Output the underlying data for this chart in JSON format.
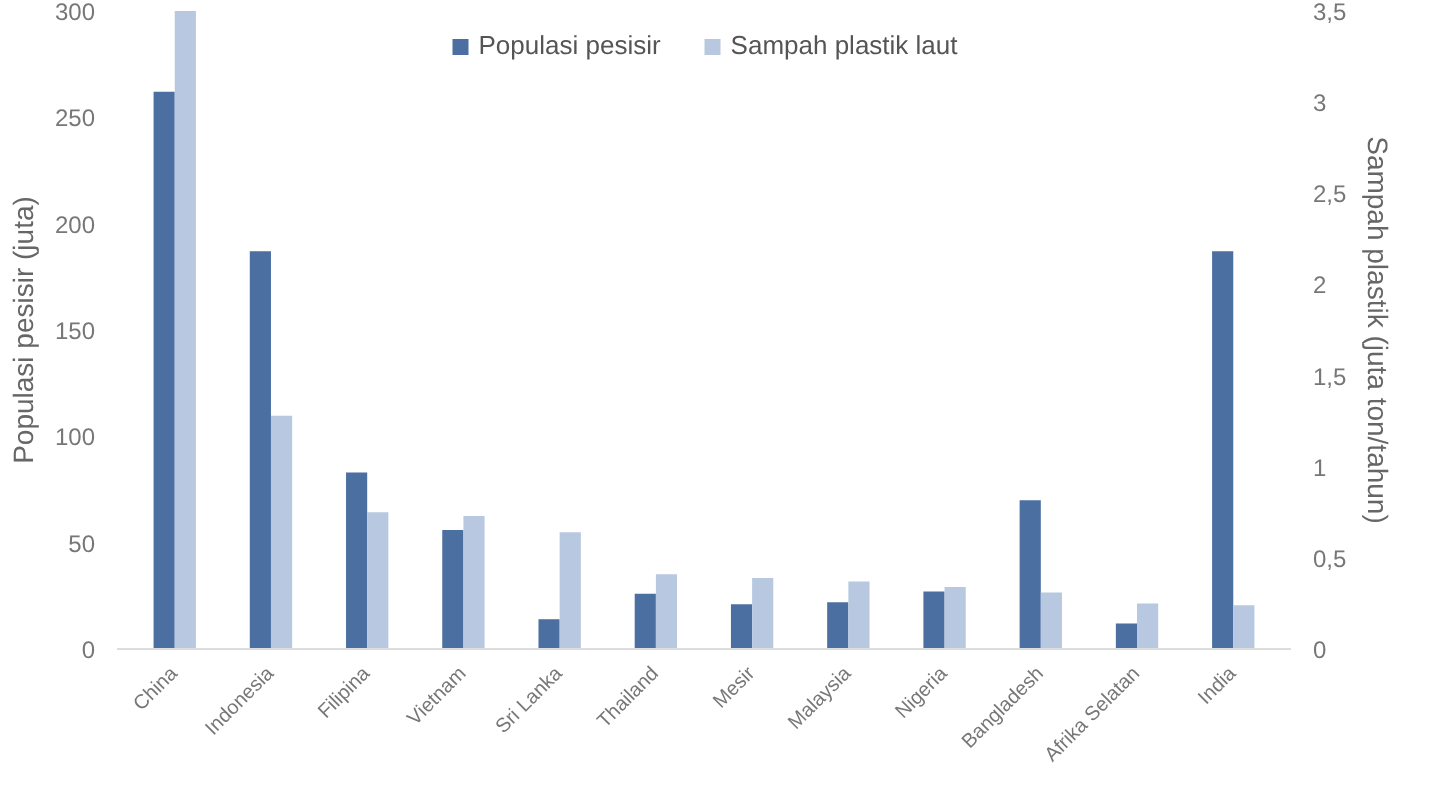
{
  "chart_data": {
    "type": "bar",
    "categories": [
      "China",
      "Indonesia",
      "Filipina",
      "Vietnam",
      "Sri Lanka",
      "Thailand",
      "Mesir",
      "Malaysia",
      "Nigeria",
      "Bangladesh",
      "Afrika Selatan",
      "India"
    ],
    "series": [
      {
        "name": "Populasi pesisir",
        "color": "#4a6fa0",
        "values": [
          262,
          187,
          83,
          56,
          14,
          26,
          21,
          22,
          27,
          70,
          12,
          187
        ]
      },
      {
        "name": "Sampah plastik laut",
        "color": "#b8c8e0",
        "axis": "y2",
        "values": [
          3.5,
          1.28,
          0.75,
          0.73,
          0.64,
          0.41,
          0.39,
          0.37,
          0.34,
          0.31,
          0.25,
          0.24
        ]
      }
    ],
    "ylabel": "Populasi pesisir (juta)",
    "y2label": "Sampah plastik (juta ton/tahun)",
    "ylim": [
      0,
      300
    ],
    "yticks": [
      0,
      50,
      100,
      150,
      200,
      250,
      300
    ],
    "y2lim": [
      0,
      3.5
    ],
    "y2ticks": [
      0,
      {
        "value": 0.5,
        "label": "0,5"
      },
      1,
      {
        "value": 1.5,
        "label": "1,5"
      },
      2,
      {
        "value": 2.5,
        "label": "2,5"
      },
      3,
      {
        "value": 3.5,
        "label": "3,5"
      }
    ],
    "legend": "top",
    "grid": false
  }
}
